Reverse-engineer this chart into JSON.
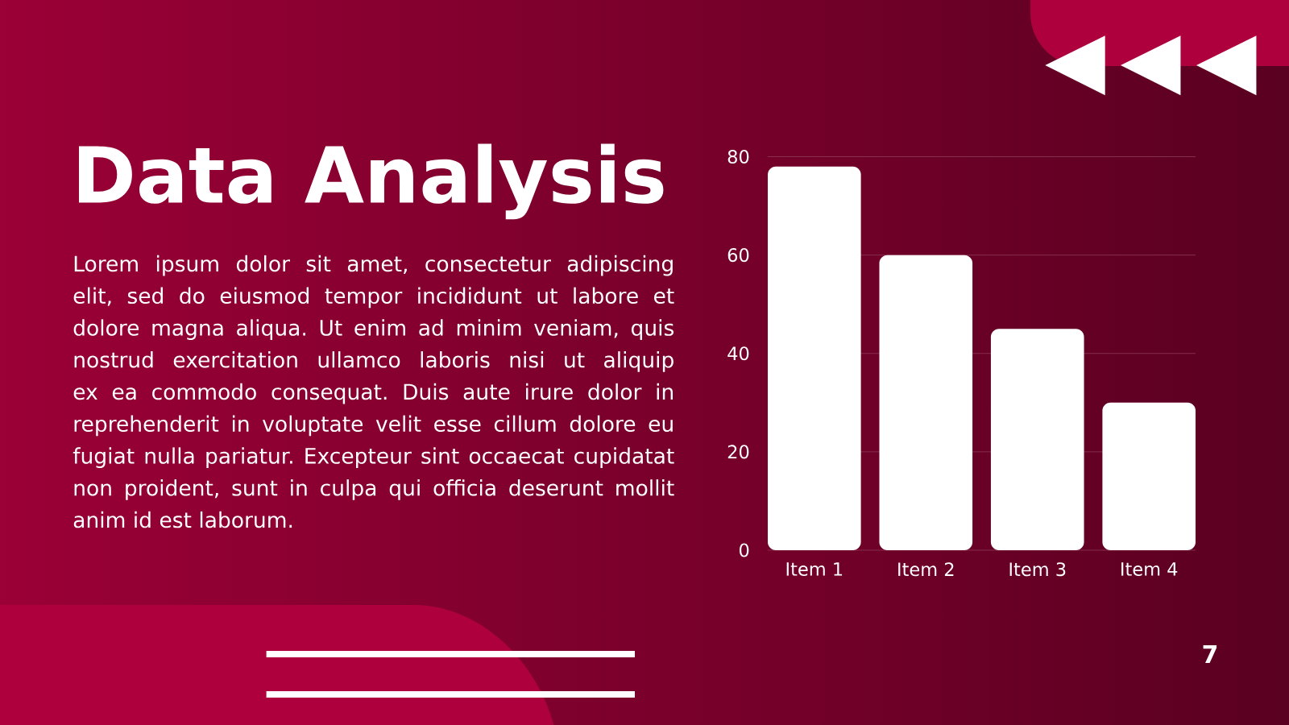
{
  "chart_data": {
    "type": "bar",
    "title": "Data Analysis",
    "annotations": [
      "Lorem ipsum dolor sit amet, consectetur adipiscing elit, sed do eiusmod tempor incididunt ut labore et dolore magna aliqua. Ut enim ad minim veniam, quis nostrud exercitation ullamco laboris nisi ut aliquip ex ea commodo consequat. Duis aute irure dolor in reprehenderit in voluptate velit esse cillum dolore eu fugiat nulla pariatur. Excepteur sint occaecat cupidatat non proident, sunt in culpa qui officia deserunt mollit anim id est laborum.",
      "7"
    ],
    "categories": [
      "Item 1",
      "Item 2",
      "Item 3",
      "Item 4"
    ],
    "values": [
      78,
      60,
      45,
      30
    ],
    "color": "#ffffff",
    "ylim": [
      0,
      80
    ],
    "yticks": [
      0,
      20,
      40,
      60,
      80
    ],
    "grid": "y"
  }
}
